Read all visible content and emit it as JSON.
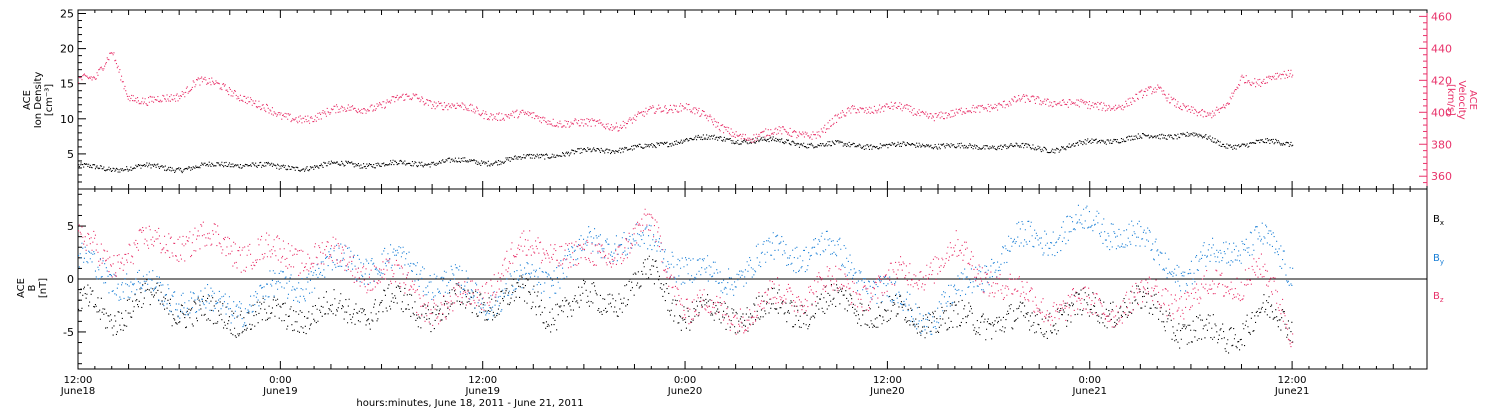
{
  "colors": {
    "black": "#000000",
    "pink": "#e8326a",
    "blue": "#1a7fd6",
    "axis": "#000000"
  },
  "figure": {
    "xlabel": "hours:minutes, June 18, 2011 - June 21, 2011",
    "x_ticks": [
      {
        "value": 12,
        "label": "12:00",
        "sublabel": "June18"
      },
      {
        "value": 24,
        "label": "0:00",
        "sublabel": "June19"
      },
      {
        "value": 36,
        "label": "12:00",
        "sublabel": "June19"
      },
      {
        "value": 48,
        "label": "0:00",
        "sublabel": "June20"
      },
      {
        "value": 60,
        "label": "12:00",
        "sublabel": "June20"
      },
      {
        "value": 72,
        "label": "0:00",
        "sublabel": "June21"
      },
      {
        "value": 84,
        "label": "12:00",
        "sublabel": "June21"
      }
    ],
    "x_range_hours_from_june18_0000": [
      12,
      92
    ],
    "data_end_hour": 84
  },
  "chart_data": [
    {
      "type": "scatter",
      "id": "top-panel",
      "ylabel_left": [
        "ACE",
        "Ion Density",
        "[cm⁻³]"
      ],
      "ylabel_right": [
        "ACE",
        "Velocity",
        "[km/s]"
      ],
      "ylim_left": [
        0,
        25.5
      ],
      "ylim_right": [
        352,
        464
      ],
      "yticks_left": [
        5,
        10,
        15,
        20,
        25
      ],
      "yticks_right": [
        360,
        380,
        400,
        420,
        440,
        460
      ],
      "series": [
        {
          "axis": "left",
          "color": "black",
          "x": [
            12,
            14,
            16,
            18,
            20,
            22,
            24,
            26,
            28,
            30,
            32,
            34,
            36,
            38,
            40,
            42,
            44,
            46,
            48,
            50,
            52,
            54,
            56,
            58,
            60,
            62,
            64,
            66,
            68,
            70,
            72,
            74,
            76,
            78,
            80,
            82,
            84
          ],
          "y": [
            3.2,
            3.0,
            3.2,
            3.0,
            3.4,
            3.7,
            3.0,
            3.3,
            3.6,
            3.6,
            3.7,
            4.0,
            3.9,
            4.3,
            5.0,
            5.3,
            5.8,
            6.0,
            7.3,
            7.2,
            7.0,
            6.8,
            6.3,
            6.4,
            6.1,
            6.5,
            6.0,
            6.2,
            6.0,
            5.8,
            6.7,
            7.3,
            7.5,
            8.0,
            6.2,
            6.7,
            6.5
          ]
        },
        {
          "axis": "right",
          "color": "pink",
          "x": [
            12,
            13,
            14,
            15,
            16,
            18,
            19,
            20,
            22,
            24,
            26,
            28,
            29,
            30,
            32,
            34,
            36,
            38,
            40,
            42,
            44,
            46,
            48,
            50,
            52,
            54,
            56,
            58,
            60,
            62,
            64,
            66,
            68,
            70,
            72,
            74,
            76,
            78,
            79,
            80,
            81,
            82,
            84
          ],
          "y": [
            420,
            420,
            440,
            410,
            405,
            412,
            420,
            417,
            410,
            396,
            398,
            402,
            404,
            405,
            410,
            404,
            400,
            398,
            396,
            392,
            393,
            400,
            406,
            390,
            385,
            388,
            387,
            403,
            403,
            400,
            398,
            405,
            407,
            408,
            403,
            406,
            414,
            402,
            396,
            403,
            424,
            418,
            425
          ]
        }
      ]
    },
    {
      "type": "scatter",
      "id": "bottom-panel",
      "ylabel_left": [
        "ACE",
        "B",
        "[nT]"
      ],
      "ylim": [
        -8.5,
        8.5
      ],
      "yticks": [
        -5,
        0,
        5
      ],
      "zero_line": true,
      "legend_position": "right",
      "series": [
        {
          "name": "Bx",
          "color": "black",
          "x": [
            12,
            14,
            16,
            18,
            20,
            22,
            24,
            26,
            28,
            30,
            32,
            34,
            36,
            38,
            40,
            42,
            44,
            46,
            48,
            50,
            52,
            54,
            56,
            58,
            60,
            62,
            64,
            66,
            68,
            70,
            72,
            74,
            76,
            78,
            80,
            82,
            84
          ],
          "y": [
            -2.5,
            -3.3,
            -2.0,
            -2.5,
            -3.8,
            -3.2,
            -3.8,
            -2.8,
            -3.2,
            -2.3,
            -2.8,
            -2.6,
            -2.0,
            -1.7,
            -2.8,
            -2.3,
            -1.6,
            0.4,
            -3.2,
            -3.5,
            -3.0,
            -2.8,
            -2.6,
            -2.0,
            -3.6,
            -3.2,
            -4.2,
            -3.5,
            -4.3,
            -3.2,
            -3.0,
            -2.2,
            -3.0,
            -5.0,
            -5.5,
            -3.2,
            -4.3
          ]
        },
        {
          "name": "By",
          "color": "blue",
          "x": [
            12,
            14,
            16,
            18,
            20,
            22,
            24,
            26,
            28,
            30,
            32,
            34,
            36,
            38,
            40,
            42,
            44,
            46,
            48,
            50,
            52,
            54,
            56,
            58,
            60,
            62,
            64,
            66,
            68,
            70,
            72,
            74,
            76,
            78,
            80,
            82,
            84
          ],
          "y": [
            1.5,
            0.5,
            -1.0,
            -1.5,
            -2.8,
            -2.2,
            -1.0,
            0.5,
            1.8,
            1.6,
            1.0,
            -0.5,
            -1.8,
            -0.8,
            0.5,
            2.8,
            4.0,
            3.0,
            1.5,
            -0.5,
            1.8,
            2.5,
            3.2,
            1.0,
            -1.5,
            -3.5,
            -2.0,
            1.5,
            3.5,
            4.5,
            5.2,
            4.8,
            2.0,
            0.5,
            3.0,
            3.8,
            0.5
          ]
        },
        {
          "name": "Bz",
          "color": "pink",
          "x": [
            12,
            14,
            16,
            18,
            20,
            22,
            24,
            26,
            28,
            30,
            32,
            34,
            36,
            38,
            40,
            42,
            44,
            46,
            48,
            50,
            52,
            54,
            56,
            58,
            60,
            62,
            64,
            66,
            68,
            70,
            72,
            74,
            76,
            78,
            80,
            82,
            84
          ],
          "y": [
            3.2,
            2.0,
            3.0,
            3.8,
            3.5,
            2.8,
            2.2,
            2.6,
            1.5,
            0.5,
            -1.5,
            -3.0,
            -1.0,
            2.5,
            3.2,
            1.5,
            3.0,
            4.8,
            -2.5,
            -3.2,
            -2.8,
            -1.5,
            -0.5,
            -1.0,
            -0.5,
            1.0,
            2.5,
            0.5,
            -1.8,
            -2.5,
            -2.8,
            -2.2,
            -1.5,
            -2.0,
            -0.5,
            1.0,
            -5.0
          ]
        }
      ]
    }
  ]
}
